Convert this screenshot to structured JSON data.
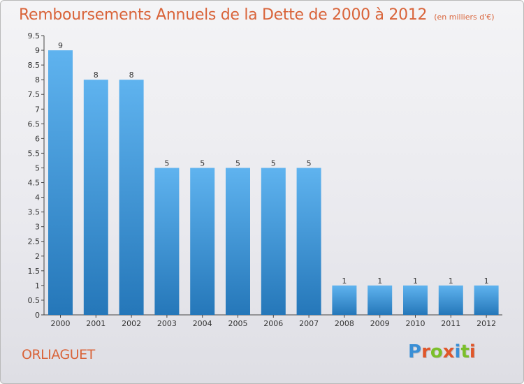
{
  "header": {
    "title": "Remboursements Annuels de la Dette de 2000 à 2012",
    "unit": "(en milliers d'€)"
  },
  "footer": {
    "commune": "ORLIAGUET",
    "brand": "Proxiti"
  },
  "colors": {
    "title": "#d9643a",
    "bar_light": "#5fb3ef",
    "bar_dark": "#2577b9",
    "brand_letters": [
      "#3a8fd6",
      "#e0562a",
      "#7bbf2a",
      "#e0562a",
      "#3a8fd6",
      "#7bbf2a",
      "#e0562a"
    ]
  },
  "chart_data": {
    "type": "bar",
    "title": "Remboursements Annuels de la Dette de 2000 à 2012",
    "subtitle": "(en milliers d'€)",
    "categories": [
      "2000",
      "2001",
      "2002",
      "2003",
      "2004",
      "2005",
      "2006",
      "2007",
      "2008",
      "2009",
      "2010",
      "2011",
      "2012"
    ],
    "values": [
      9,
      8,
      8,
      5,
      5,
      5,
      5,
      5,
      1,
      1,
      1,
      1,
      1
    ],
    "data_labels": [
      "9",
      "8",
      "8",
      "5",
      "5",
      "5",
      "5",
      "5",
      "1",
      "1",
      "1",
      "1",
      "1"
    ],
    "ylim": [
      0,
      9.5
    ],
    "yticks": [
      "0",
      "0.5",
      "1",
      "1.5",
      "2",
      "2.5",
      "3",
      "3.5",
      "4",
      "4.5",
      "5",
      "5.5",
      "6",
      "6.5",
      "7",
      "7.5",
      "8",
      "8.5",
      "9",
      "9.5"
    ],
    "grid": false,
    "legend": "none"
  }
}
